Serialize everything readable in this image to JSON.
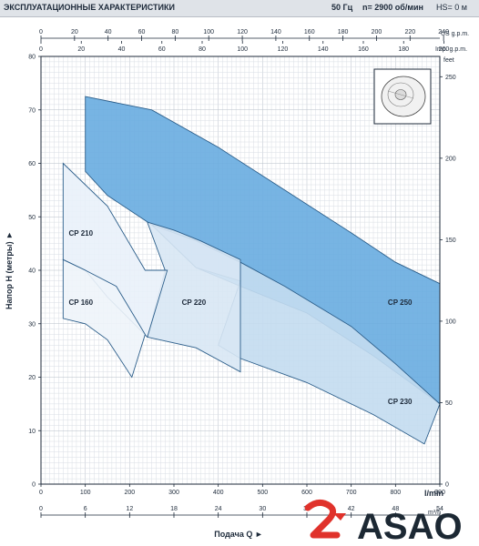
{
  "header": {
    "title": "ЭКСПЛУАТАЦИОННЫЕ ХАРАКТЕРИСТИКИ",
    "freq": "50 Гц",
    "speed": "n= 2900  об/мин",
    "hs": "HS= 0 м"
  },
  "axes": {
    "ylabel": "Напор H (метры) ►",
    "xlabel": "Подача Q ►",
    "unit_lmin": "l/min",
    "unit_m3h": "m³/h",
    "unit_feet": "feet",
    "unit_us": "US g.p.m.",
    "unit_imp": "Imp. g.p.m."
  },
  "chart_data": {
    "type": "area",
    "x_unit": "l/min",
    "y_unit": "m",
    "xlim": [
      0,
      900
    ],
    "ylim": [
      0,
      80
    ],
    "x_ticks": [
      0,
      100,
      200,
      300,
      400,
      500,
      600,
      700,
      800,
      900
    ],
    "y_ticks": [
      0,
      10,
      20,
      30,
      40,
      50,
      60,
      70,
      80
    ],
    "m3h_ticks": [
      0,
      6,
      12,
      18,
      24,
      30,
      36,
      42,
      48,
      54
    ],
    "us_gpm_ticks": [
      0,
      20,
      40,
      60,
      80,
      100,
      120,
      140,
      160,
      180,
      200,
      220,
      240
    ],
    "imp_gpm_ticks": [
      0,
      20,
      40,
      60,
      80,
      100,
      120,
      140,
      160,
      180,
      200
    ],
    "feet_ticks": [
      0,
      50,
      100,
      150,
      200,
      250
    ],
    "grid": true,
    "series": [
      {
        "name": "CP 250",
        "color": "#68ace0",
        "points": [
          [
            100,
            72.5
          ],
          [
            250,
            70
          ],
          [
            400,
            63
          ],
          [
            550,
            55
          ],
          [
            700,
            47
          ],
          [
            800,
            41.5
          ],
          [
            900,
            37.5
          ],
          [
            900,
            15
          ],
          [
            750,
            24
          ],
          [
            600,
            32
          ],
          [
            450,
            37
          ],
          [
            350,
            40.5
          ],
          [
            250,
            48.5
          ],
          [
            150,
            54
          ],
          [
            100,
            58.5
          ]
        ]
      },
      {
        "name": "CP 230",
        "color": "#c3dcf0",
        "points": [
          [
            250,
            48.5
          ],
          [
            350,
            45.5
          ],
          [
            450,
            41.5
          ],
          [
            550,
            37
          ],
          [
            700,
            29.5
          ],
          [
            800,
            22.5
          ],
          [
            900,
            15
          ],
          [
            865,
            7.5
          ],
          [
            750,
            13
          ],
          [
            600,
            19
          ],
          [
            450,
            23.5
          ],
          [
            400,
            26
          ],
          [
            450,
            38
          ],
          [
            350,
            40.5
          ]
        ]
      },
      {
        "name": "CP 220",
        "color": "#d8e7f4",
        "points": [
          [
            240,
            49
          ],
          [
            300,
            47.5
          ],
          [
            360,
            45.5
          ],
          [
            450,
            42
          ],
          [
            450,
            21
          ],
          [
            350,
            25.5
          ],
          [
            240,
            27.5
          ],
          [
            280,
            40
          ]
        ]
      },
      {
        "name": "CP 210",
        "color": "#e9f1f9",
        "points": [
          [
            50,
            60
          ],
          [
            150,
            52
          ],
          [
            235,
            40
          ],
          [
            285,
            40
          ],
          [
            240,
            27.5
          ],
          [
            150,
            35
          ],
          [
            100,
            40
          ],
          [
            50,
            42
          ]
        ]
      },
      {
        "name": "CP 160",
        "color": "#eef4fa",
        "points": [
          [
            50,
            42
          ],
          [
            100,
            40
          ],
          [
            170,
            37
          ],
          [
            235,
            28
          ],
          [
            205,
            20
          ],
          [
            150,
            27
          ],
          [
            100,
            30
          ],
          [
            50,
            31
          ]
        ]
      }
    ],
    "labels": [
      {
        "text": "CP 250",
        "x": 810,
        "y": 33.5
      },
      {
        "text": "CP 230",
        "x": 810,
        "y": 15
      },
      {
        "text": "CP 220",
        "x": 345,
        "y": 33.5
      },
      {
        "text": "CP 210",
        "x": 90,
        "y": 46.5
      },
      {
        "text": "CP 160",
        "x": 90,
        "y": 33.5
      }
    ]
  },
  "logo": {
    "text": "ASAO"
  }
}
